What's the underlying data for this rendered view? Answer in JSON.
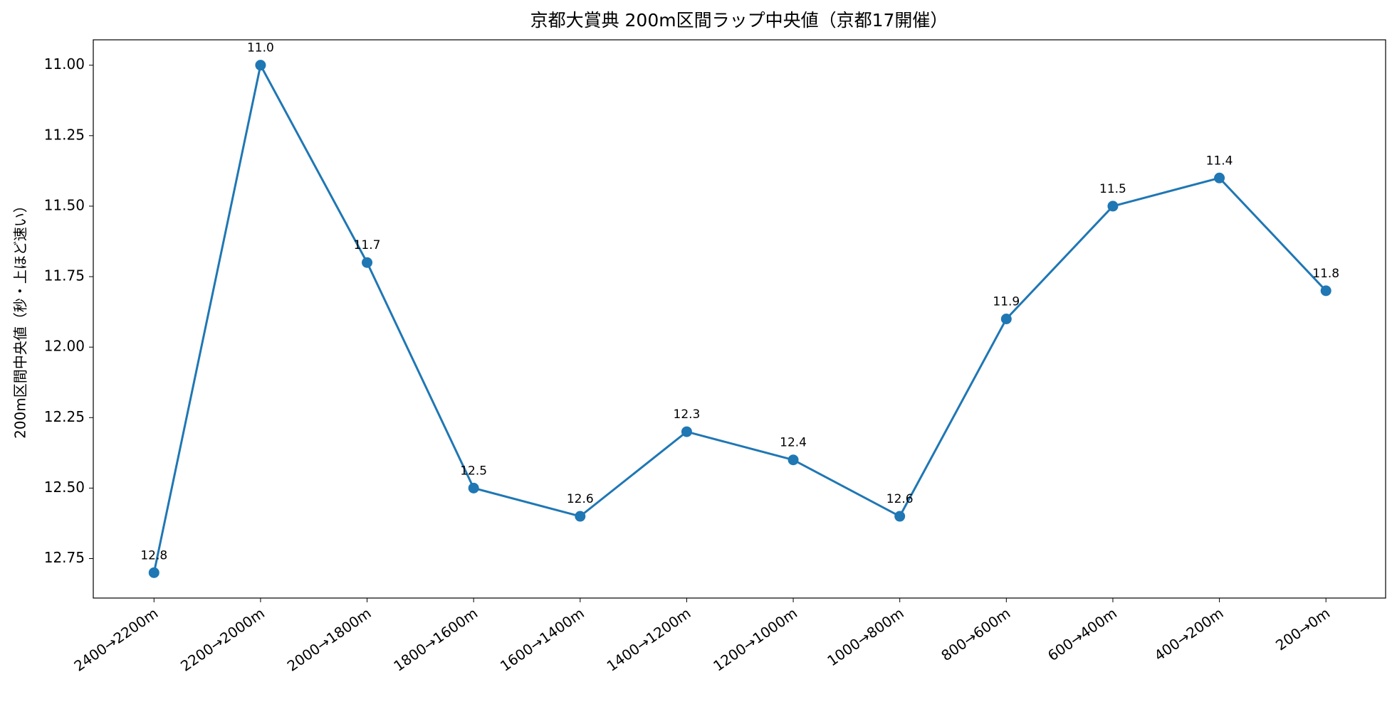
{
  "chart_data": {
    "type": "line",
    "title": "京都大賞典 200m区間ラップ中央値（京都17開催）",
    "y_label": "200m区間中央値（秒・上ほど速い）",
    "categories": [
      "2400→2200m",
      "2200→2000m",
      "2000→1800m",
      "1800→1600m",
      "1600→1400m",
      "1400→1200m",
      "1200→1000m",
      "1000→800m",
      "800→600m",
      "600→400m",
      "400→200m",
      "200→0m"
    ],
    "values": [
      12.8,
      11.0,
      11.7,
      12.5,
      12.6,
      12.3,
      12.4,
      12.6,
      11.9,
      11.5,
      11.4,
      11.8
    ],
    "value_labels": [
      "12.8",
      "11.0",
      "11.7",
      "12.5",
      "12.6",
      "12.3",
      "12.4",
      "12.6",
      "11.9",
      "11.5",
      "11.4",
      "11.8"
    ],
    "color": "#1f77b4",
    "ylim": [
      10.91,
      12.89
    ],
    "y_inverted": true,
    "yticks": [
      {
        "value": 11,
        "label": "11.00"
      },
      {
        "value": 11.25,
        "label": "11.25"
      },
      {
        "value": 11.5,
        "label": "11.50"
      },
      {
        "value": 11.75,
        "label": "11.75"
      },
      {
        "value": 12,
        "label": "12.00"
      },
      {
        "value": 12.25,
        "label": "12.25"
      },
      {
        "value": 12.5,
        "label": "12.50"
      },
      {
        "value": 12.75,
        "label": "12.75"
      }
    ],
    "grid": false
  }
}
